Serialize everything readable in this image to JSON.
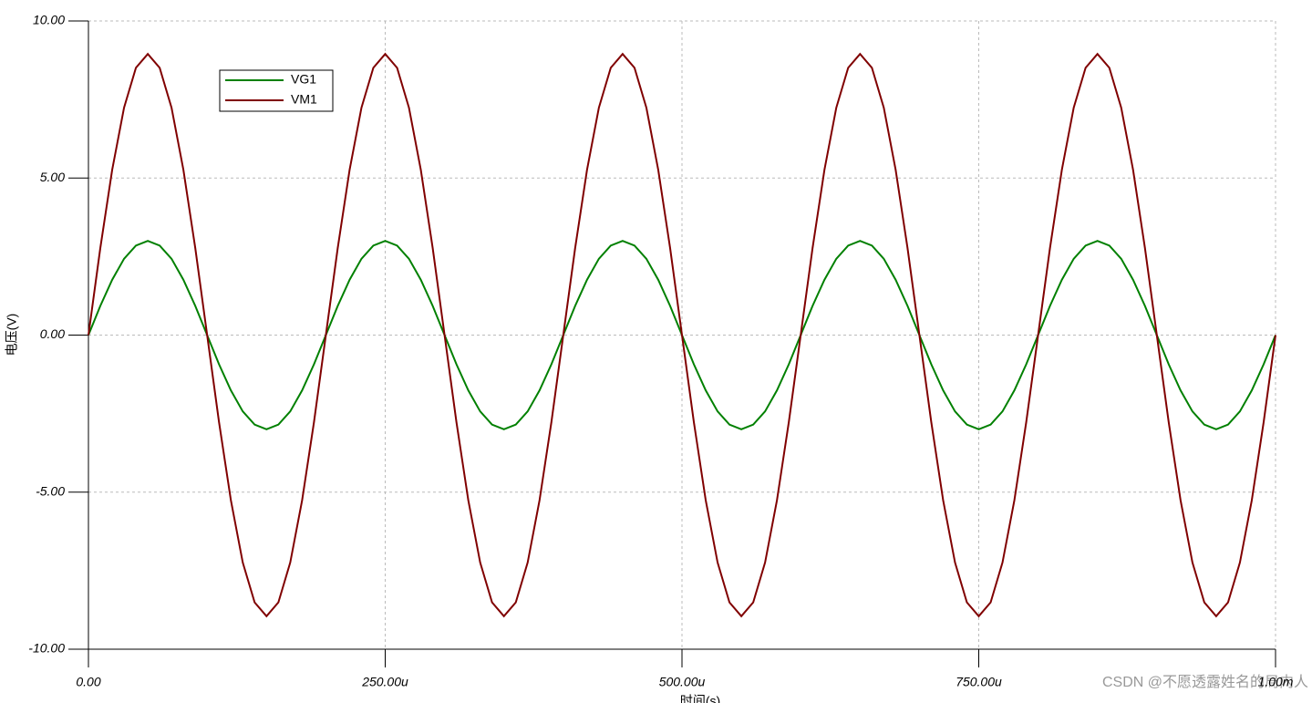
{
  "chart_data": {
    "type": "line",
    "x_label": "时间(s)",
    "y_label": "电压(V)",
    "watermark": "CSDN @不愿透露姓名的局内人",
    "x": [
      0,
      1e-05,
      2e-05,
      3e-05,
      4e-05,
      5e-05,
      6e-05,
      7e-05,
      8e-05,
      9e-05,
      0.0001,
      0.00011,
      0.00012,
      0.00013,
      0.00014,
      0.00015,
      0.00016,
      0.00017,
      0.00018,
      0.00019,
      0.0002,
      0.00021,
      0.00022,
      0.00023,
      0.00024,
      0.00025,
      0.00026,
      0.00027,
      0.00028,
      0.00029,
      0.0003,
      0.00031,
      0.00032,
      0.00033,
      0.00034,
      0.00035,
      0.00036,
      0.00037,
      0.00038,
      0.00039,
      0.0004,
      0.00041,
      0.00042,
      0.00043,
      0.00044,
      0.00045,
      0.00046,
      0.00047,
      0.00048,
      0.00049,
      0.0005,
      0.00051,
      0.00052,
      0.00053,
      0.00054,
      0.00055,
      0.00056,
      0.00057,
      0.00058,
      0.00059,
      0.0006,
      0.00061,
      0.00062,
      0.00063,
      0.00064,
      0.00065,
      0.00066,
      0.00067,
      0.00068,
      0.00069,
      0.0007,
      0.00071,
      0.00072,
      0.00073,
      0.00074,
      0.00075,
      0.00076,
      0.00077,
      0.00078,
      0.00079,
      0.0008,
      0.00081,
      0.00082,
      0.00083,
      0.00084,
      0.00085,
      0.00086,
      0.00087,
      0.00088,
      0.00089,
      0.0009,
      0.00091,
      0.00092,
      0.00093,
      0.00094,
      0.00095,
      0.00096,
      0.00097,
      0.00098,
      0.00099,
      0.001
    ],
    "series": [
      {
        "name": "VG1",
        "color": "#008000",
        "values": [
          0,
          0.93,
          1.76,
          2.43,
          2.85,
          3,
          2.85,
          2.43,
          1.76,
          0.93,
          0,
          -0.93,
          -1.76,
          -2.43,
          -2.85,
          -3,
          -2.85,
          -2.43,
          -1.76,
          -0.93,
          0,
          0.93,
          1.76,
          2.43,
          2.85,
          3,
          2.85,
          2.43,
          1.76,
          0.93,
          0,
          -0.93,
          -1.76,
          -2.43,
          -2.85,
          -3,
          -2.85,
          -2.43,
          -1.76,
          -0.93,
          0,
          0.93,
          1.76,
          2.43,
          2.85,
          3,
          2.85,
          2.43,
          1.76,
          0.93,
          0,
          -0.93,
          -1.76,
          -2.43,
          -2.85,
          -3,
          -2.85,
          -2.43,
          -1.76,
          -0.93,
          0,
          0.93,
          1.76,
          2.43,
          2.85,
          3,
          2.85,
          2.43,
          1.76,
          0.93,
          0,
          -0.93,
          -1.76,
          -2.43,
          -2.85,
          -3,
          -2.85,
          -2.43,
          -1.76,
          -0.93,
          0,
          0.93,
          1.76,
          2.43,
          2.85,
          3,
          2.85,
          2.43,
          1.76,
          0.93,
          0,
          -0.93,
          -1.76,
          -2.43,
          -2.85,
          -3,
          -2.85,
          -2.43,
          -1.76,
          -0.93,
          0
        ]
      },
      {
        "name": "VM1",
        "color": "#800000",
        "values": [
          0,
          2.77,
          5.26,
          7.24,
          8.51,
          8.95,
          8.51,
          7.24,
          5.26,
          2.77,
          0,
          -2.77,
          -5.26,
          -7.24,
          -8.51,
          -8.95,
          -8.51,
          -7.24,
          -5.26,
          -2.77,
          0,
          2.77,
          5.26,
          7.24,
          8.51,
          8.95,
          8.51,
          7.24,
          5.26,
          2.77,
          0,
          -2.77,
          -5.26,
          -7.24,
          -8.51,
          -8.95,
          -8.51,
          -7.24,
          -5.26,
          -2.77,
          0,
          2.77,
          5.26,
          7.24,
          8.51,
          8.95,
          8.51,
          7.24,
          5.26,
          2.77,
          0,
          -2.77,
          -5.26,
          -7.24,
          -8.51,
          -8.95,
          -8.51,
          -7.24,
          -5.26,
          -2.77,
          0,
          2.77,
          5.26,
          7.24,
          8.51,
          8.95,
          8.51,
          7.24,
          5.26,
          2.77,
          0,
          -2.77,
          -5.26,
          -7.24,
          -8.51,
          -8.95,
          -8.51,
          -7.24,
          -5.26,
          -2.77,
          0,
          2.77,
          5.26,
          7.24,
          8.51,
          8.95,
          8.51,
          7.24,
          5.26,
          2.77,
          0,
          -2.77,
          -5.26,
          -7.24,
          -8.51,
          -8.95,
          -8.51,
          -7.24,
          -5.26,
          -2.77,
          0
        ]
      }
    ],
    "xlim": [
      0,
      0.001
    ],
    "xticks": [
      {
        "value": 0,
        "label": "0.00"
      },
      {
        "value": 0.00025,
        "label": "250.00u"
      },
      {
        "value": 0.0005,
        "label": "500.00u"
      },
      {
        "value": 0.00075,
        "label": "750.00u"
      },
      {
        "value": 0.001,
        "label": "1.00m"
      }
    ],
    "ylim": [
      -10,
      10
    ],
    "yticks": [
      {
        "value": -10,
        "label": "-10.00"
      },
      {
        "value": -5,
        "label": "-5.00"
      },
      {
        "value": 0,
        "label": "0.00"
      },
      {
        "value": 5,
        "label": "5.00"
      },
      {
        "value": 10,
        "label": "10.00"
      }
    ],
    "grid": true,
    "legend": "upper left"
  }
}
